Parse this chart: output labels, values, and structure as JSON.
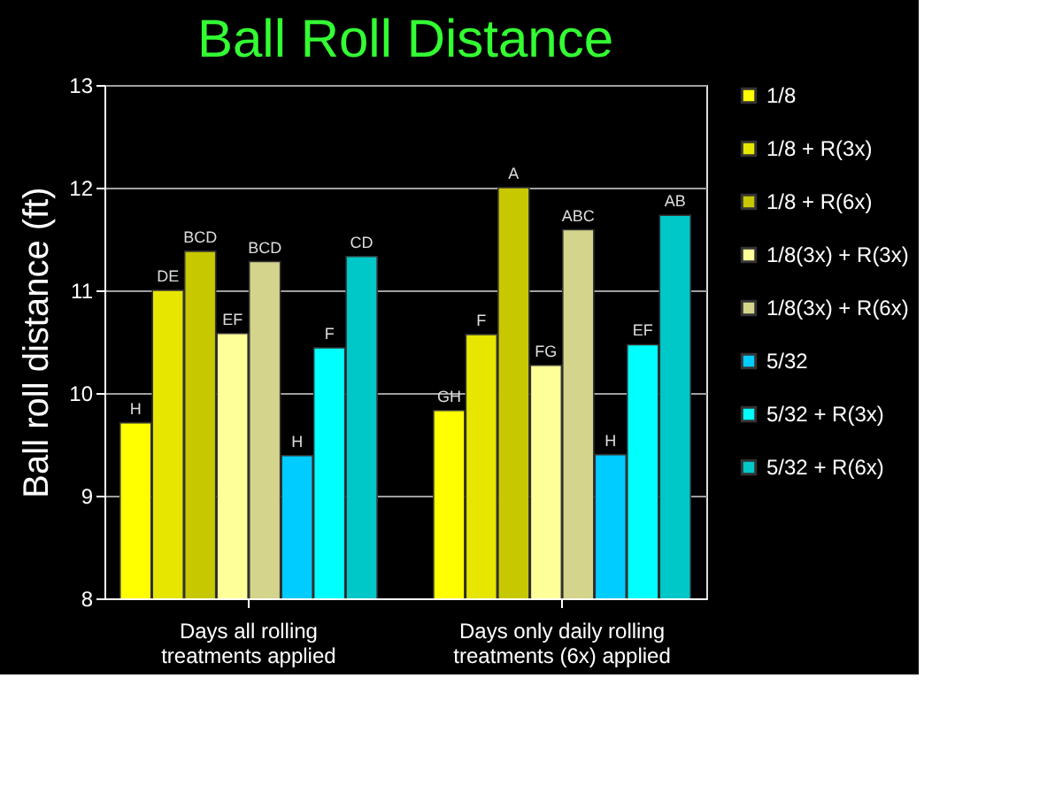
{
  "chart_data": {
    "type": "bar",
    "title": "Ball Roll Distance",
    "ylabel": "Ball roll distance (ft)",
    "categories": [
      "Days all rolling treatments applied",
      "Days only daily rolling treatments (6x) applied"
    ],
    "series": [
      {
        "name": "1/8",
        "color": "#ffff00",
        "values": [
          9.71,
          9.83
        ]
      },
      {
        "name": "1/8 + R(3x)",
        "color": "#e6e600",
        "values": [
          11.0,
          10.57
        ]
      },
      {
        "name": "1/8 + R(6x)",
        "color": "#c8c800",
        "values": [
          11.38,
          12.0
        ]
      },
      {
        "name": "1/8(3x) + R(3x)",
        "color": "#ffff99",
        "values": [
          10.58,
          10.27
        ]
      },
      {
        "name": "1/8(3x) + R(6x)",
        "color": "#d4d48c",
        "values": [
          11.28,
          11.59
        ]
      },
      {
        "name": "5/32",
        "color": "#00ccff",
        "values": [
          9.39,
          9.4
        ]
      },
      {
        "name": "5/32 + R(3x)",
        "color": "#00ffff",
        "values": [
          10.44,
          10.47
        ]
      },
      {
        "name": "5/32 + R(6x)",
        "color": "#00c8c8",
        "values": [
          11.33,
          11.73
        ]
      }
    ],
    "ylim": [
      8,
      13
    ],
    "yticks": [
      8,
      9,
      10,
      11,
      12,
      13
    ],
    "grid": "y",
    "legend": "right",
    "annotations": [
      "H",
      "DE",
      "BCD",
      "EF",
      "BCD",
      "H",
      "F",
      "CD",
      "GH",
      "F",
      "A",
      "FG",
      "ABC",
      "H",
      "EF",
      "AB"
    ]
  }
}
